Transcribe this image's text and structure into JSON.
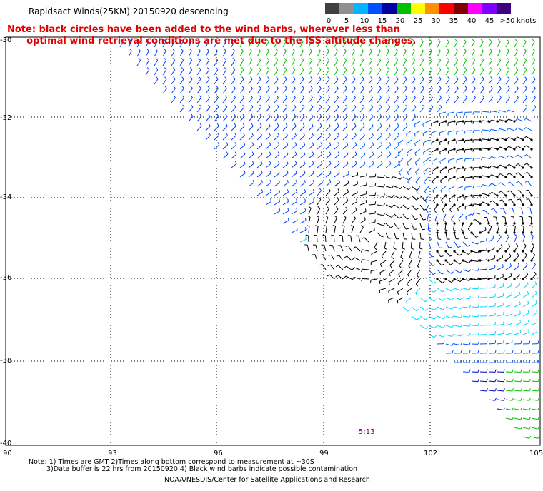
{
  "title": "Rapidsact Winds(25KM) 20150920 descending",
  "note": "Note: black circles have been added to the wind barbs, wherever less than\n      optimal wind retrieval conditions are met due to the ISS altitude changes.",
  "colorbar": {
    "labels": [
      "0",
      "5",
      "10",
      "15",
      "20",
      "25",
      "30",
      "35",
      "40",
      "45",
      ">50"
    ],
    "unit": "knots",
    "colors": [
      "#404040",
      "#909090",
      "#00b4ff",
      "#0050ff",
      "#0000a0",
      "#00c000",
      "#ffff00",
      "#ff9000",
      "#ff0000",
      "#800000",
      "#ff00ff",
      "#8000ff",
      "#400080"
    ]
  },
  "axes": {
    "lat_labels": [
      "-30",
      "-32",
      "-34",
      "-36",
      "-38",
      "-40"
    ],
    "lon_labels": [
      "90",
      "93",
      "96",
      "99",
      "102",
      "105"
    ]
  },
  "orbit_time": "5:13",
  "footer": {
    "line1": "Note: 1) Times are GMT 2)Times along bottom correspond to measurement at ~30S",
    "line2": "3)Data buffer is 22 hrs from 20150920 4) Black wind barbs indicate possible contamination",
    "credit": "NOAA/NESDIS/Center for Satellite Applications and Research"
  }
}
